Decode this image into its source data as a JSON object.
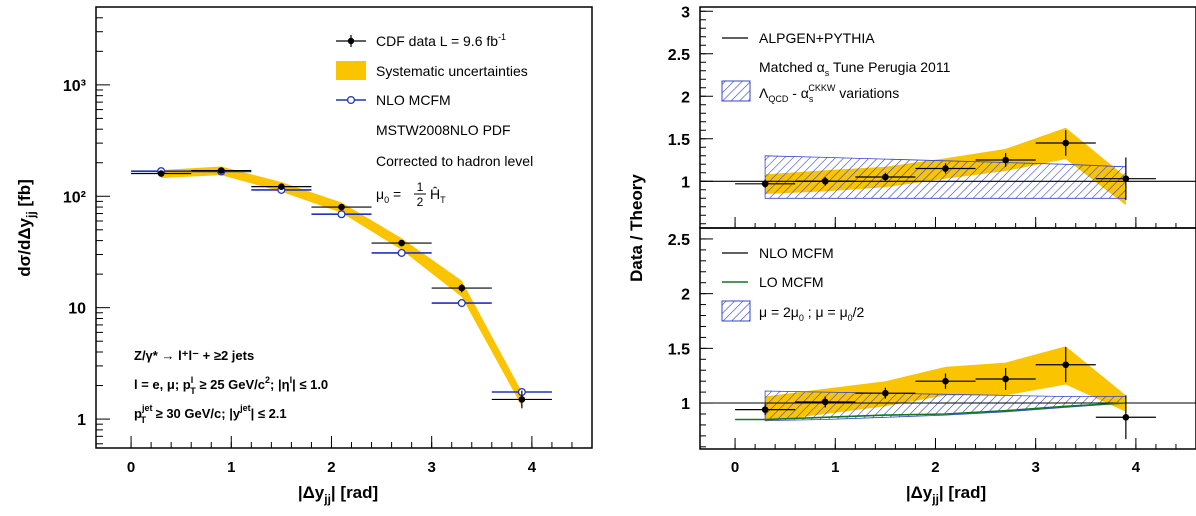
{
  "colors": {
    "data": "#000000",
    "band": "#fbc400",
    "nlo": "#2233bb",
    "hatch": "#3344cc",
    "lo": "#117722"
  },
  "left": {
    "xlabel": "|Δy",
    "xlabel_sub": "jj",
    "xlabel_tail": "| [rad]",
    "ylabel": "dσ/dΔy",
    "ylabel_sub": "jj",
    "ylabel_tail": " [fb]",
    "yscale": "log",
    "legend": {
      "data": "CDF data  L =  9.6 fb",
      "data_sup": "-1",
      "syst": "Systematic uncertainties",
      "nlo": "NLO MCFM",
      "pdf": "MSTW2008NLO PDF",
      "hadron": "Corrected to hadron level",
      "scale_mu": "μ",
      "scale_sub": "0",
      "scale_eq": " = ",
      "scale_num": "1",
      "scale_den": "2",
      "scale_h": "Ĥ",
      "scale_hsub": "T"
    },
    "cuts": {
      "line1": "Z/γ* → l⁺l⁻ + ≥2 jets",
      "line2a": "l = e, μ;  p",
      "line2b": "l",
      "line2c": "T",
      "line2d": " ≥ 25 GeV/c",
      "line2e": "2",
      "line2f": "; |η",
      "line2g": "l",
      "line2h": "| ≤ 1.0",
      "line3a": "p",
      "line3b": "jet",
      "line3c": "T",
      "line3d": " ≥ 30 GeV/c; |y",
      "line3e": "jet",
      "line3f": "| ≤ 2.1"
    }
  },
  "right": {
    "ylabel": "Data / Theory",
    "xlabel": "|Δy",
    "xlabel_sub": "jj",
    "xlabel_tail": "| [rad]",
    "top_legend": {
      "line": "ALPGEN+PYTHIA",
      "tune_a": "Matched α",
      "tune_b": "s",
      "tune_c": " Tune Perugia 2011",
      "var_a": "Λ",
      "var_b": "QCD",
      "var_c": " - α",
      "var_d": "s",
      "var_e": "CKKW",
      "var_f": " variations"
    },
    "bottom_legend": {
      "nlo": "NLO MCFM",
      "lo": "LO MCFM",
      "mu_a": "μ = 2μ",
      "mu_b": "0",
      "mu_c": " ; μ = μ",
      "mu_d": "0",
      "mu_e": "/2"
    }
  },
  "chart_data": [
    {
      "type": "scatter",
      "panel": "left",
      "xlim": [
        -0.35,
        4.6
      ],
      "ylim": [
        0.55,
        5000
      ],
      "yscale": "log",
      "x_ticks": [
        0,
        1,
        2,
        3,
        4
      ],
      "y_tick_labels": [
        "1",
        "10",
        "10²",
        "10³"
      ],
      "series": [
        {
          "name": "CDF data  L =  9.6 fb-1",
          "x": [
            0.3,
            0.9,
            1.5,
            2.1,
            2.7,
            3.3,
            3.9
          ],
          "y": [
            160,
            170,
            122,
            80,
            38,
            15,
            1.5
          ],
          "xerr": 0.3,
          "yerr": [
            [
              8,
              8
            ],
            [
              8,
              8
            ],
            [
              6,
              6
            ],
            [
              4,
              4
            ],
            [
              2,
              2
            ],
            [
              1.3,
              1.3
            ],
            [
              0.25,
              0.3
            ]
          ]
        },
        {
          "name": "NLO MCFM",
          "x": [
            0.3,
            0.9,
            1.5,
            2.1,
            2.7,
            3.3,
            3.9
          ],
          "y": [
            168,
            167,
            114,
            69,
            31,
            11,
            1.75
          ],
          "xerr": 0.3
        }
      ],
      "band": {
        "name": "Systematic uncertainties",
        "x": [
          0.3,
          0.9,
          1.5,
          2.1,
          2.7,
          3.3,
          3.9
        ],
        "lo": [
          146,
          155,
          110,
          71,
          33,
          12.5,
          1.3
        ],
        "hi": [
          172,
          185,
          134,
          88,
          42,
          17.5,
          1.75
        ]
      }
    },
    {
      "type": "scatter",
      "panel": "right-top",
      "ylabel": "Data / Theory",
      "xlim": [
        -0.35,
        4.6
      ],
      "ylim": [
        0.45,
        3.05
      ],
      "x_ticks": [
        0,
        1,
        2,
        3,
        4
      ],
      "y_ticks": [
        1,
        1.5,
        2,
        2.5,
        3
      ],
      "series": [
        {
          "name": "data",
          "x": [
            0.3,
            0.9,
            1.5,
            2.1,
            2.7,
            3.3,
            3.9
          ],
          "y": [
            0.97,
            1.0,
            1.05,
            1.15,
            1.25,
            1.45,
            1.03
          ],
          "xerr": 0.3,
          "yerr": [
            0.05,
            0.05,
            0.05,
            0.06,
            0.08,
            0.15,
            0.25
          ]
        },
        {
          "name": "ALPGEN+PYTHIA",
          "x": [
            -0.35,
            4.6
          ],
          "y": [
            1.0,
            1.0
          ]
        }
      ],
      "band": {
        "name": "Systematic uncertainties",
        "x": [
          0.3,
          0.9,
          1.5,
          2.1,
          2.7,
          3.3,
          3.9
        ],
        "lo": [
          0.85,
          0.88,
          0.93,
          1.03,
          1.12,
          1.26,
          0.72
        ],
        "hi": [
          1.08,
          1.13,
          1.17,
          1.27,
          1.38,
          1.63,
          1.05
        ]
      },
      "hatched_band": {
        "name": "ΛQCD - αs CKKW variations",
        "x": [
          0.3,
          0.9,
          1.5,
          2.1,
          2.7,
          3.3,
          3.9
        ],
        "lo": [
          0.8,
          0.8,
          0.8,
          0.8,
          0.8,
          0.8,
          0.8
        ],
        "hi": [
          1.3,
          1.28,
          1.26,
          1.24,
          1.22,
          1.2,
          1.17
        ]
      }
    },
    {
      "type": "scatter",
      "panel": "right-bottom",
      "xlabel": "|Δyjj| [rad]",
      "xlim": [
        -0.35,
        4.6
      ],
      "ylim": [
        0.58,
        2.6
      ],
      "x_ticks": [
        0,
        1,
        2,
        3,
        4
      ],
      "y_ticks": [
        1,
        1.5,
        2,
        2.5
      ],
      "series": [
        {
          "name": "data",
          "x": [
            0.3,
            0.9,
            1.5,
            2.1,
            2.7,
            3.3,
            3.9
          ],
          "y": [
            0.94,
            1.01,
            1.09,
            1.2,
            1.22,
            1.35,
            0.87
          ],
          "xerr": 0.3,
          "yerr": [
            0.05,
            0.05,
            0.05,
            0.07,
            0.1,
            0.16,
            0.2
          ]
        },
        {
          "name": "NLO MCFM",
          "x": [
            -0.35,
            4.6
          ],
          "y": [
            1.0,
            1.0
          ]
        },
        {
          "name": "LO MCFM",
          "x": [
            0.0,
            0.3,
            0.9,
            1.5,
            2.1,
            2.7,
            3.3,
            3.9
          ],
          "y": [
            0.85,
            0.85,
            0.87,
            0.89,
            0.9,
            0.93,
            0.97,
            1.0
          ]
        }
      ],
      "band": {
        "name": "Systematic uncertainties",
        "x": [
          0.3,
          0.9,
          1.5,
          2.1,
          2.7,
          3.3,
          3.9
        ],
        "lo": [
          0.83,
          0.9,
          0.97,
          1.07,
          1.07,
          1.17,
          0.92
        ],
        "hi": [
          1.06,
          1.13,
          1.2,
          1.33,
          1.37,
          1.52,
          1.07
        ]
      },
      "hatched_band": {
        "name": "μ = 2μ0 ; μ = μ0/2",
        "x": [
          0.3,
          0.9,
          1.5,
          2.1,
          2.7,
          3.3,
          3.9
        ],
        "lo": [
          0.84,
          0.85,
          0.87,
          0.89,
          0.92,
          0.96,
          1.0
        ],
        "hi": [
          1.11,
          1.1,
          1.09,
          1.08,
          1.07,
          1.06,
          1.06
        ]
      }
    }
  ]
}
